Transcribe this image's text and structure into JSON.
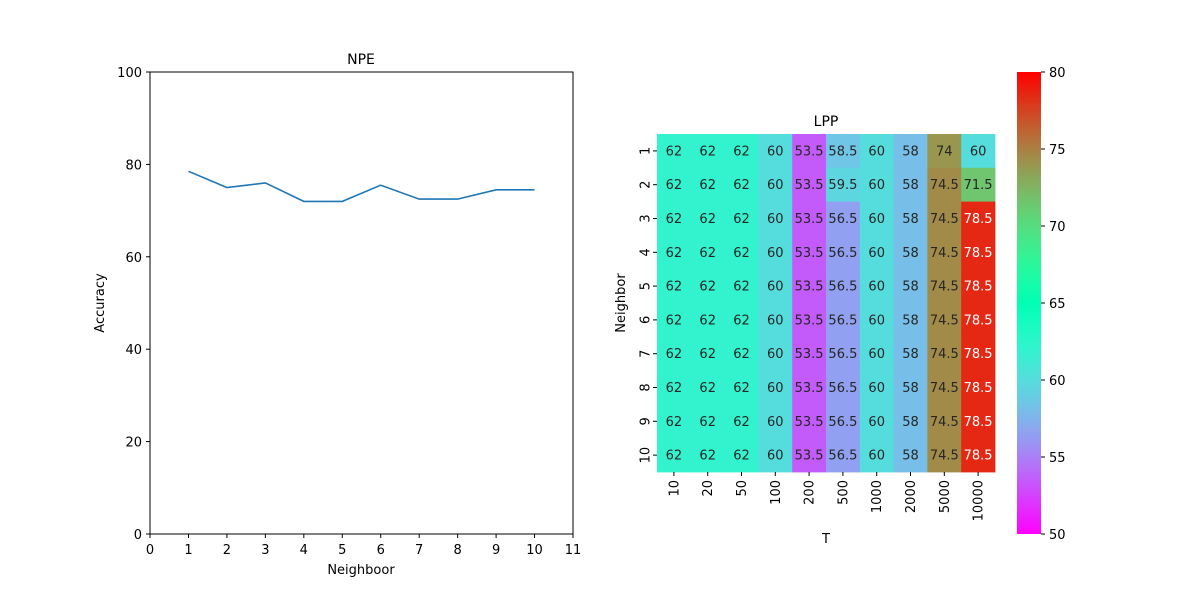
{
  "chart_data": [
    {
      "type": "line",
      "title": "NPE",
      "xlabel": "Neighboor",
      "ylabel": "Accuracy",
      "xlim": [
        0,
        11
      ],
      "ylim": [
        0,
        100
      ],
      "xticks": [
        0,
        1,
        2,
        3,
        4,
        5,
        6,
        7,
        8,
        9,
        10,
        11
      ],
      "yticks": [
        0,
        20,
        40,
        60,
        80,
        100
      ],
      "grid": false,
      "color": "#1f77b4",
      "series": [
        {
          "x": [
            1,
            2,
            3,
            4,
            5,
            6,
            7,
            8,
            9,
            10
          ],
          "y": [
            78.5,
            75,
            76,
            72,
            72,
            75.5,
            72.5,
            72.5,
            74.5,
            74.5
          ]
        }
      ]
    },
    {
      "type": "heatmap",
      "title": "LPP",
      "xlabel": "T",
      "ylabel": "Neighbor",
      "x_categories": [
        "10",
        "20",
        "50",
        "100",
        "200",
        "500",
        "1000",
        "2000",
        "5000",
        "10000"
      ],
      "y_categories": [
        "1",
        "2",
        "3",
        "4",
        "5",
        "6",
        "7",
        "8",
        "9",
        "10"
      ],
      "values": [
        [
          62,
          62,
          62,
          60,
          53.5,
          58.5,
          60,
          58,
          74,
          60
        ],
        [
          62,
          62,
          62,
          60,
          53.5,
          59.5,
          60,
          58,
          74.5,
          71.5
        ],
        [
          62,
          62,
          62,
          60,
          53.5,
          56.5,
          60,
          58,
          74.5,
          78.5
        ],
        [
          62,
          62,
          62,
          60,
          53.5,
          56.5,
          60,
          58,
          74.5,
          78.5
        ],
        [
          62,
          62,
          62,
          60,
          53.5,
          56.5,
          60,
          58,
          74.5,
          78.5
        ],
        [
          62,
          62,
          62,
          60,
          53.5,
          56.5,
          60,
          58,
          74.5,
          78.5
        ],
        [
          62,
          62,
          62,
          60,
          53.5,
          56.5,
          60,
          58,
          74.5,
          78.5
        ],
        [
          62,
          62,
          62,
          60,
          53.5,
          56.5,
          60,
          58,
          74.5,
          78.5
        ],
        [
          62,
          62,
          62,
          60,
          53.5,
          56.5,
          60,
          58,
          74.5,
          78.5
        ],
        [
          62,
          62,
          62,
          60,
          53.5,
          56.5,
          60,
          58,
          74.5,
          78.5
        ]
      ],
      "colormap": "rainbow",
      "colorbar": {
        "vmin": 50,
        "vmax": 80,
        "ticks": [
          50,
          55,
          60,
          65,
          70,
          75,
          80
        ]
      }
    }
  ]
}
